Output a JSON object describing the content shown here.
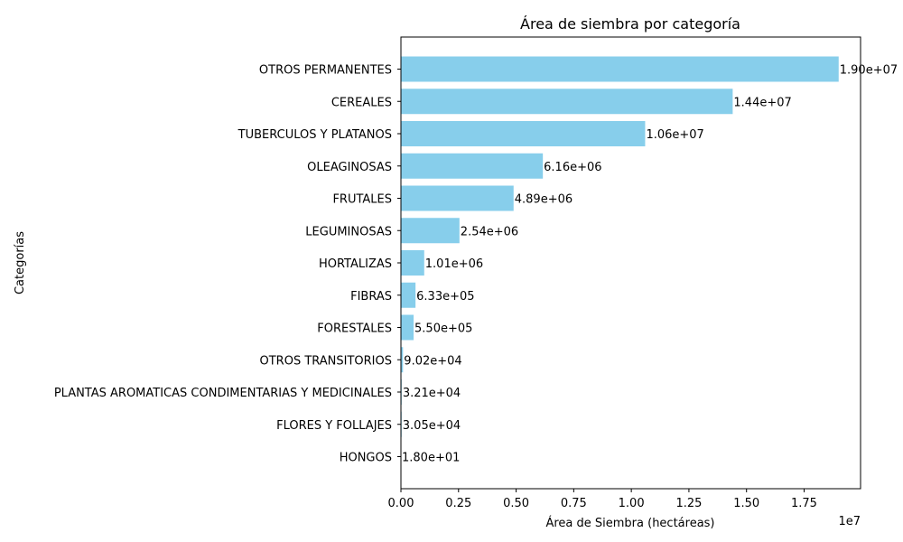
{
  "chart_data": {
    "type": "bar",
    "orientation": "horizontal",
    "title": "Área de siembra por categoría",
    "xlabel": "Área de Siembra (hectáreas)",
    "ylabel": "Categorías",
    "x_offset_label": "1e7",
    "xlim": [
      0,
      19950000
    ],
    "xticks": [
      0,
      2500000,
      5000000,
      7500000,
      10000000,
      12500000,
      15000000,
      17500000
    ],
    "xtick_labels": [
      "0.00",
      "0.25",
      "0.50",
      "0.75",
      "1.00",
      "1.25",
      "1.50",
      "1.75"
    ],
    "grid": false,
    "bar_color": "#87ceeb",
    "categories": [
      "OTROS PERMANENTES",
      "CEREALES",
      "TUBERCULOS Y PLATANOS",
      "OLEAGINOSAS",
      "FRUTALES",
      "LEGUMINOSAS",
      "HORTALIZAS",
      "FIBRAS",
      "FORESTALES",
      "OTROS TRANSITORIOS",
      "PLANTAS AROMATICAS CONDIMENTARIAS Y MEDICINALES",
      "FLORES Y FOLLAJES",
      "HONGOS"
    ],
    "values": [
      19000000,
      14400000,
      10600000,
      6160000,
      4890000,
      2540000,
      1010000,
      633000,
      550000,
      90200,
      32100,
      30500,
      18
    ],
    "value_labels": [
      "1.90e+07",
      "1.44e+07",
      "1.06e+07",
      "6.16e+06",
      "4.89e+06",
      "2.54e+06",
      "1.01e+06",
      "6.33e+05",
      "5.50e+05",
      "9.02e+04",
      "3.21e+04",
      "3.05e+04",
      "1.80e+01"
    ]
  }
}
